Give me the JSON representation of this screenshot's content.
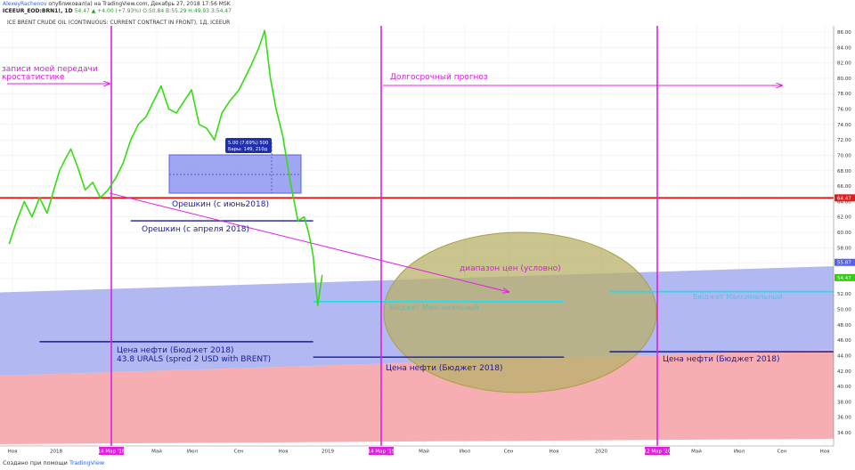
{
  "header": {
    "author": "AlexeyRachenov",
    "published": "опубликовал(а) на TradingView.com, Декабрь 27, 2018 17:56 MSK",
    "symbol_line": "ICEEUR_EOD:BRN1!, 1D",
    "ohlc": "54.47 ▲ +4.00 (+7.93%) О:50.84 В:55.29 Н:49.93 З:54.47"
  },
  "description": "ICE BRENT CRUDE OIL (CONTINUOUS: CURRENT CONTRACT IN FRONT), 1Д, ICEEUR",
  "footer": {
    "created": "Создано при помощи",
    "brand": "TradingView"
  },
  "colors": {
    "price_line": "#33dd11",
    "magenta": "#e020e0",
    "red_line": "#e21b1b",
    "navy": "#1a1aa0",
    "cyan": "#22ddee",
    "blue_zone": "#aab0f0",
    "red_zone": "#f4a0a6",
    "ellipse": "#b8b06a"
  },
  "chart_data": {
    "type": "line",
    "title": "ICE BRENT CRUDE OIL (CONTINUOUS: CURRENT CONTRACT IN FRONT), 1Д, ICEEUR",
    "y_axis": {
      "ylim": [
        32.5,
        87.5
      ],
      "ticks": [
        34,
        36,
        38,
        40,
        42,
        44,
        46,
        48,
        50,
        52,
        54,
        56,
        58,
        60,
        62,
        64,
        66,
        68,
        70,
        72,
        74,
        76,
        78,
        80,
        82,
        84,
        86
      ],
      "side": "right"
    },
    "x_axis": {
      "ticks": [
        "Ноя",
        "2018",
        "14 Мар '18",
        "Май",
        "Июл",
        "Сен",
        "Ноя",
        "2019",
        "14 Мар '19",
        "Май",
        "Июл",
        "Сен",
        "Ноя",
        "2020",
        "12 Мар '20",
        "Май",
        "Июл",
        "Сен",
        "Ноя"
      ],
      "highlighted_ticks": [
        "14 Мар '18",
        "14 Мар '19",
        "12 Мар '20"
      ]
    },
    "price_badges": [
      {
        "value": "64.47",
        "color": "#e21b1b"
      },
      {
        "value": "55.87",
        "color": "#5560ee"
      },
      {
        "value": "54.47",
        "color": "#33cc11"
      }
    ],
    "series": [
      {
        "name": "BRN1!",
        "points": [
          [
            "Ноя 2017",
            58.5
          ],
          [
            "Ноя 2017",
            61.5
          ],
          [
            "Ноя 2017",
            64.0
          ],
          [
            "Дек 2017",
            62.0
          ],
          [
            "Дек 2017",
            64.5
          ],
          [
            "Дек 2017",
            62.5
          ],
          [
            "Янв 2018",
            65.5
          ],
          [
            "Янв 2018",
            68.0
          ],
          [
            "Янв 2018",
            69.5
          ],
          [
            "Янв 2018",
            70.8
          ],
          [
            "Фев 2018",
            68.5
          ],
          [
            "Фев 2018",
            65.5
          ],
          [
            "Фев 2018",
            66.5
          ],
          [
            "Мар 2018",
            64.5
          ],
          [
            "Мар 2018",
            65.5
          ],
          [
            "Мар 2018",
            67.0
          ],
          [
            "Апр 2018",
            69.0
          ],
          [
            "Апр 2018",
            72.0
          ],
          [
            "Апр 2018",
            74.0
          ],
          [
            "Май 2018",
            75.0
          ],
          [
            "Май 2018",
            77.0
          ],
          [
            "Май 2018",
            79.0
          ],
          [
            "Июн 2018",
            76.0
          ],
          [
            "Июн 2018",
            75.5
          ],
          [
            "Июн 2018",
            77.0
          ],
          [
            "Июл 2018",
            78.5
          ],
          [
            "Июл 2018",
            74.0
          ],
          [
            "Июл 2018",
            73.5
          ],
          [
            "Авг 2018",
            72.0
          ],
          [
            "Авг 2018",
            75.5
          ],
          [
            "Авг 2018",
            77.0
          ],
          [
            "Сен 2018",
            78.5
          ],
          [
            "Сен 2018",
            81.5
          ],
          [
            "Окт 2018",
            84.0
          ],
          [
            "Окт 2018",
            86.2
          ],
          [
            "Окт 2018",
            80.0
          ],
          [
            "Окт 2018",
            76.0
          ],
          [
            "Ноя 2018",
            72.5
          ],
          [
            "Ноя 2018",
            66.5
          ],
          [
            "Ноя 2018",
            61.5
          ],
          [
            "Дек 2018",
            62.0
          ],
          [
            "Дек 2018",
            60.0
          ],
          [
            "Дек 2018",
            57.0
          ],
          [
            "Дек 2018",
            50.5
          ],
          [
            "Дек 2018",
            54.47
          ]
        ]
      }
    ],
    "levels": [
      {
        "label": "",
        "value": 64.47,
        "from": "Ноя 2017",
        "to": "right edge",
        "color": "#e21b1b"
      },
      {
        "label": "Орешкин (с июнь2018)",
        "value": 64.47,
        "color": "#1a1aa0"
      },
      {
        "label": "Орешкин (с апреля 2018)",
        "value": 61.5,
        "from": "Апр 2018",
        "to": "Дек 2018",
        "color": "#1a1aa0"
      },
      {
        "label": "Цена нефти (Бюджет 2018)\n43.8 URALS (spred 2 USD with BRENT)",
        "value": 45.8,
        "from": "Дек 2017",
        "to": "Дек 2018",
        "color": "#1a1aa0"
      },
      {
        "label": "Цена нефти (Бюджет 2018)",
        "value": 43.8,
        "from": "Дек 2018",
        "to": "Ноя 2019",
        "color": "#1a1aa0"
      },
      {
        "label": "Цена нефти (Бюджет 2018)",
        "value": 44.5,
        "from": "Янв 2020",
        "to": "right edge",
        "color": "#1a1aa0"
      },
      {
        "label": "Бюджет Максимальный",
        "value": 51.0,
        "from": "Дек 2018",
        "to": "Ноя 2019",
        "color": "#22ddee"
      },
      {
        "label": "Бюджет Максимальный",
        "value": 52.3,
        "from": "Янв 2020",
        "to": "right edge",
        "color": "#22ddee"
      }
    ],
    "annotations": [
      {
        "text": "записи моей передачи"
      },
      {
        "text": "кростатистике"
      },
      {
        "text": "Долгосрочный прогноз"
      },
      {
        "text": "диапазон цен (условно)"
      },
      {
        "text": "5.00 (7.69%) 500"
      },
      {
        "text": "Бары: 149, 210д"
      }
    ],
    "verticals": [
      "14 Мар '18",
      "14 Мар '19",
      "12 Мар '20"
    ],
    "grid": true
  }
}
